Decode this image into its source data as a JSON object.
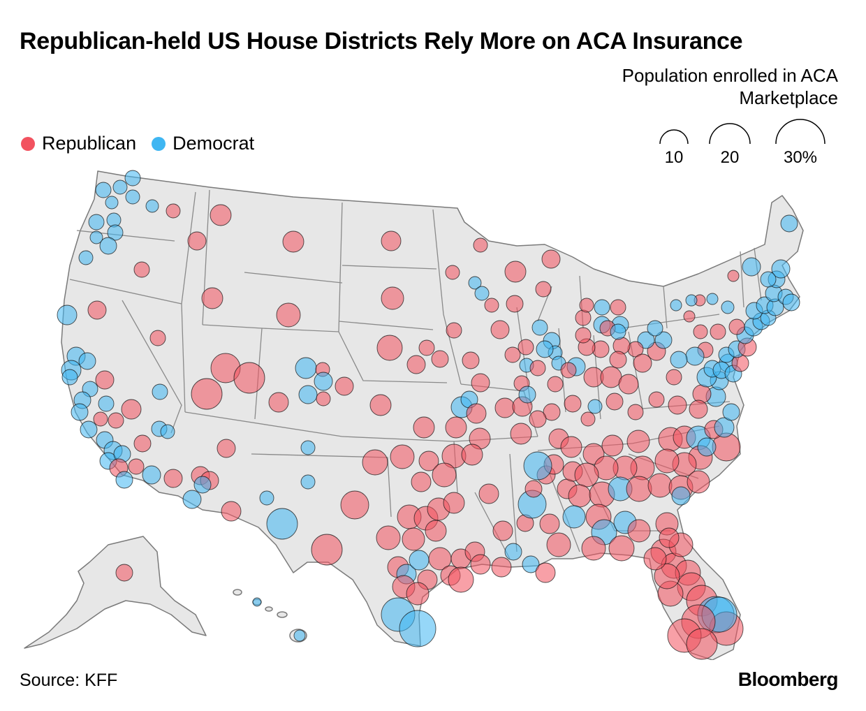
{
  "header": {
    "title": "Republican-held US House Districts Rely More on ACA Insurance"
  },
  "size_legend": {
    "title": "Population enrolled in ACA Marketplace",
    "items": [
      {
        "label": "10",
        "value": 10
      },
      {
        "label": "20",
        "value": 20
      },
      {
        "label": "30%",
        "value": 30
      }
    ]
  },
  "legend": {
    "items": [
      {
        "label": "Republican",
        "color": "#f2525f"
      },
      {
        "label": "Democrat",
        "color": "#3fb6f2"
      }
    ]
  },
  "colors": {
    "republican_fill": "#f2525f",
    "democrat_fill": "#3fb6f2",
    "land": "#e7e7e7",
    "border": "#7a7a7a"
  },
  "footer": {
    "source": "Source: KFF",
    "brand": "Bloomberg"
  }
}
